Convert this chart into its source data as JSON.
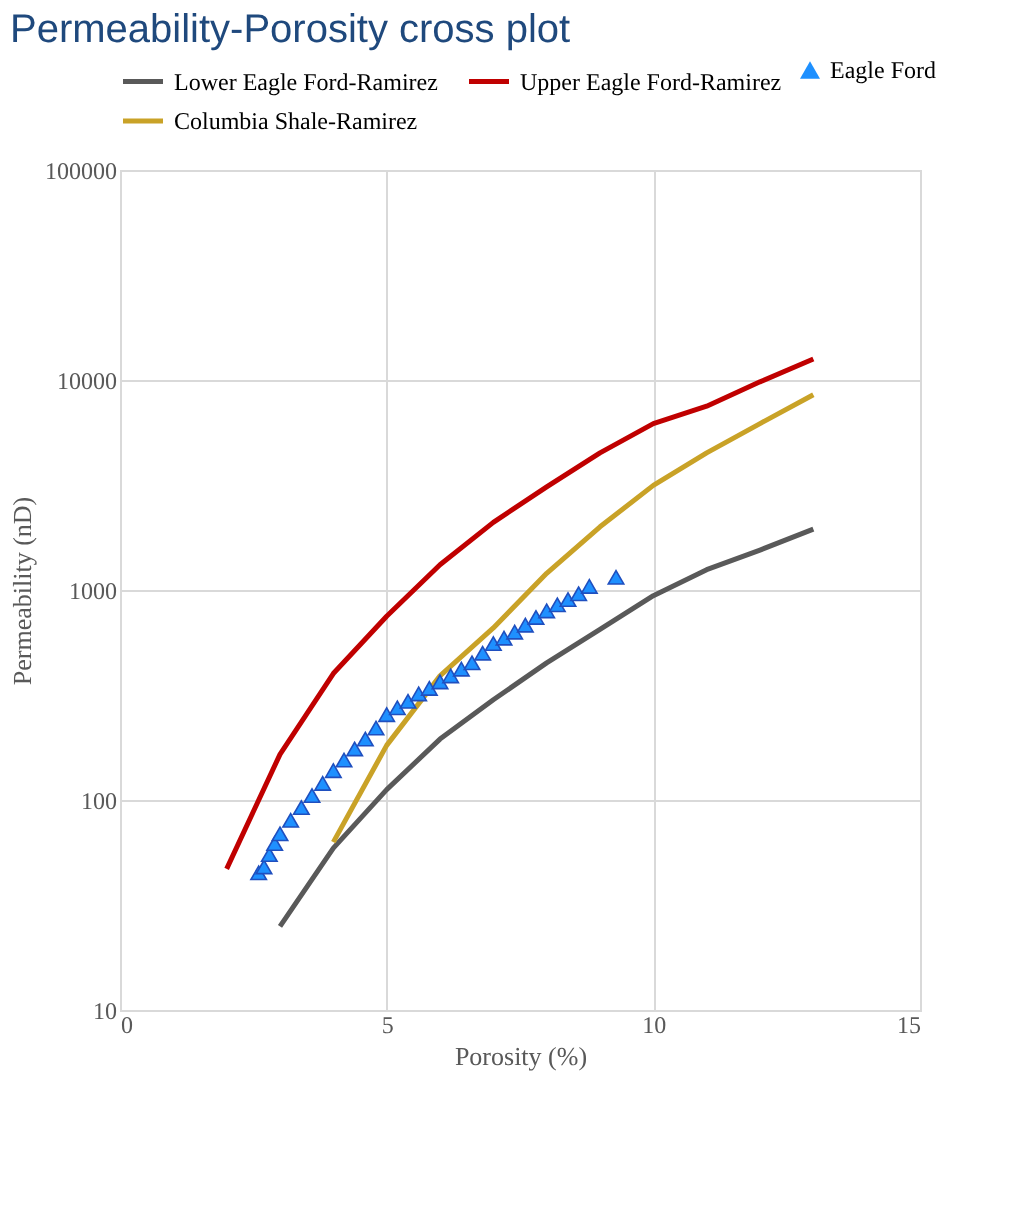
{
  "chart_data": {
    "type": "line",
    "title": "Permeability-Porosity cross plot",
    "xlabel": "Porosity (%)",
    "ylabel": "Permeability (nD)",
    "log": "y",
    "grid": true,
    "legend": "top",
    "xlim": [
      0,
      15
    ],
    "xticks": [
      0,
      5,
      10,
      15
    ],
    "ylim": [
      10,
      100000
    ],
    "yticks": [
      10,
      100,
      1000,
      10000,
      100000
    ],
    "series": [
      {
        "name": "Lower Eagle Ford-Ramirez",
        "color": "#595959",
        "x": [
          3,
          4,
          5,
          6,
          7,
          8,
          9,
          10,
          11,
          12,
          13
        ],
        "values": [
          25,
          59,
          112,
          195,
          300,
          450,
          650,
          940,
          1250,
          1550,
          1950
        ]
      },
      {
        "name": "Upper Eagle Ford-Ramirez",
        "color": "#c00000",
        "x": [
          2,
          3,
          4,
          5,
          6,
          7,
          8,
          9,
          10,
          11,
          12,
          13
        ],
        "values": [
          47,
          165,
          400,
          750,
          1320,
          2100,
          3100,
          4500,
          6200,
          7500,
          9800,
          12600
        ]
      },
      {
        "name": "Columbia Shale-Ramirez",
        "color": "#c9a227",
        "x": [
          4,
          5,
          6,
          7,
          8,
          9,
          10,
          11,
          12,
          13
        ],
        "values": [
          63,
          182,
          390,
          660,
          1200,
          2000,
          3150,
          4500,
          6200,
          8500
        ]
      },
      {
        "name": "Eagle Ford",
        "type": "scatter",
        "marker": "triangle",
        "color": "#1e90ff",
        "x": [
          2.6,
          2.7,
          2.8,
          2.9,
          3.0,
          3.2,
          3.4,
          3.6,
          3.8,
          4.0,
          4.2,
          4.4,
          4.6,
          4.8,
          5.0,
          5.2,
          5.4,
          5.6,
          5.8,
          6.0,
          6.2,
          6.4,
          6.6,
          6.8,
          7.0,
          7.2,
          7.4,
          7.6,
          7.8,
          8.0,
          8.2,
          8.4,
          8.6,
          8.8,
          9.3
        ],
        "values": [
          45,
          48,
          55,
          62,
          69,
          80,
          92,
          105,
          120,
          138,
          155,
          175,
          195,
          220,
          255,
          275,
          295,
          320,
          340,
          365,
          390,
          420,
          450,
          500,
          556,
          590,
          630,
          680,
          740,
          795,
          850,
          900,
          960,
          1040,
          1150
        ]
      }
    ]
  }
}
